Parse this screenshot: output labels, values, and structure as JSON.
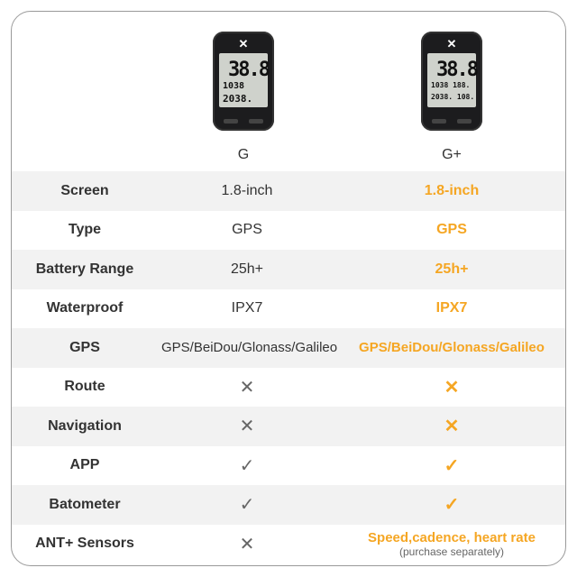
{
  "products": [
    {
      "name": "G",
      "screen": {
        "big": "38.8",
        "l2": "1038",
        "l3": "2038."
      }
    },
    {
      "name": "G+",
      "screen": {
        "big": "38.8",
        "l2": "1038 188.",
        "l3": "2038. 108."
      }
    }
  ],
  "rows": [
    {
      "label": "Screen",
      "g": "1.8-inch",
      "gplus": "1.8-inch"
    },
    {
      "label": "Type",
      "g": "GPS",
      "gplus": "GPS"
    },
    {
      "label": "Battery Range",
      "g": "25h+",
      "gplus": "25h+"
    },
    {
      "label": "Waterproof",
      "g": "IPX7",
      "gplus": "IPX7"
    },
    {
      "label": "GPS",
      "g": "GPS/BeiDou/Glonass/Galileo",
      "gplus": "GPS/BeiDou/Glonass/Galileo"
    },
    {
      "label": "Route",
      "g_icon": "cross-icon",
      "gplus_icon": "cross-icon"
    },
    {
      "label": "Navigation",
      "g_icon": "cross-icon",
      "gplus_icon": "cross-icon"
    },
    {
      "label": "APP",
      "g_icon": "check-icon",
      "gplus_icon": "check-icon"
    },
    {
      "label": "Batometer",
      "g_icon": "check-icon",
      "gplus_icon": "check-icon"
    },
    {
      "label": "ANT+ Sensors",
      "g_icon": "cross-icon",
      "gplus": "Speed,cadence, heart rate",
      "gplus_note": "(purchase separately)"
    }
  ],
  "colors": {
    "accent": "#f5a623",
    "text": "#333333",
    "stripe": "#f2f2f2"
  }
}
